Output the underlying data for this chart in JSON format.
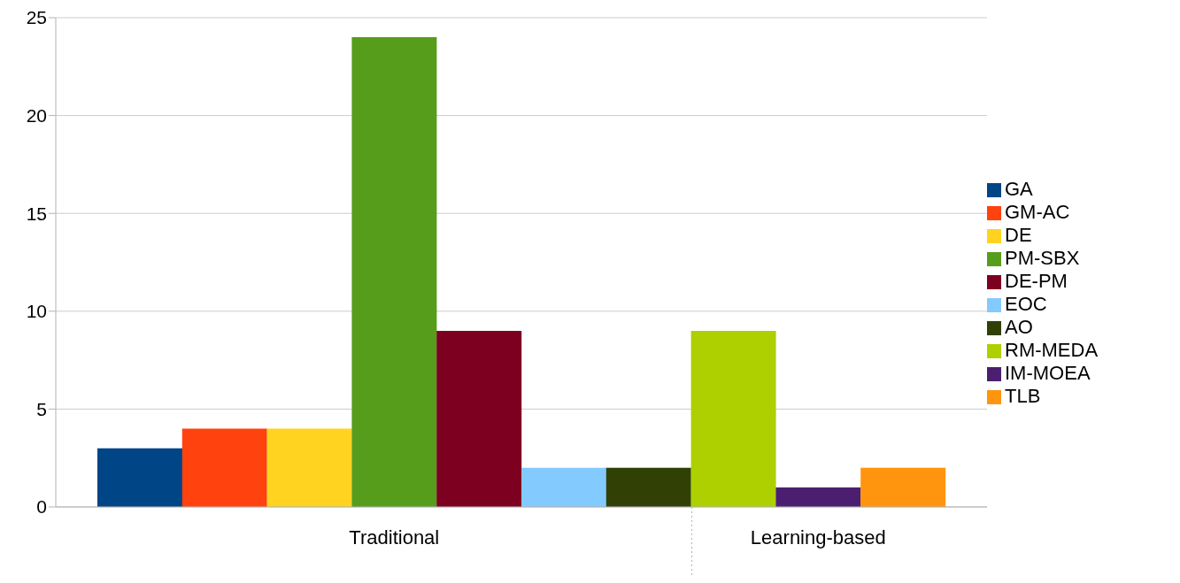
{
  "chart_data": {
    "type": "bar",
    "stacked": true,
    "categories": [
      null,
      null,
      null,
      null,
      null,
      null,
      null,
      null,
      null,
      null
    ],
    "series": [
      {
        "name": "GA",
        "color": "#004586",
        "values": [
          3,
          null,
          null,
          null,
          null,
          null,
          null,
          null,
          null,
          null
        ]
      },
      {
        "name": "GM-AC",
        "color": "#ff420e",
        "values": [
          null,
          4,
          null,
          null,
          null,
          null,
          null,
          null,
          null,
          null
        ]
      },
      {
        "name": "DE",
        "color": "#ffd320",
        "values": [
          null,
          null,
          4,
          null,
          null,
          null,
          null,
          null,
          null,
          null
        ]
      },
      {
        "name": "PM-SBX",
        "color": "#579d1c",
        "values": [
          null,
          null,
          null,
          24,
          null,
          null,
          null,
          null,
          null,
          null
        ]
      },
      {
        "name": "DE-PM",
        "color": "#7e0021",
        "values": [
          null,
          null,
          null,
          null,
          9,
          null,
          null,
          null,
          null,
          null
        ]
      },
      {
        "name": "EOC",
        "color": "#83caff",
        "values": [
          null,
          null,
          null,
          null,
          null,
          2,
          null,
          null,
          null,
          null
        ]
      },
      {
        "name": "AO",
        "color": "#314004",
        "values": [
          null,
          null,
          null,
          null,
          null,
          null,
          2,
          null,
          null,
          null
        ]
      },
      {
        "name": "RM-MEDA",
        "color": "#aecf00",
        "values": [
          null,
          null,
          null,
          null,
          null,
          null,
          null,
          9,
          null,
          null
        ]
      },
      {
        "name": "IM-MOEA",
        "color": "#4b1f6f",
        "values": [
          null,
          null,
          null,
          null,
          null,
          null,
          null,
          null,
          1,
          null
        ]
      },
      {
        "name": "TLB",
        "color": "#ff950e",
        "values": [
          null,
          null,
          null,
          null,
          null,
          null,
          null,
          null,
          null,
          2
        ]
      }
    ],
    "ylim": [
      0,
      25
    ],
    "yticks": [
      0,
      5,
      10,
      15,
      20,
      25
    ],
    "grid": "y",
    "legend": "right",
    "annotations": [
      "Traditional",
      "Learning-based"
    ]
  }
}
